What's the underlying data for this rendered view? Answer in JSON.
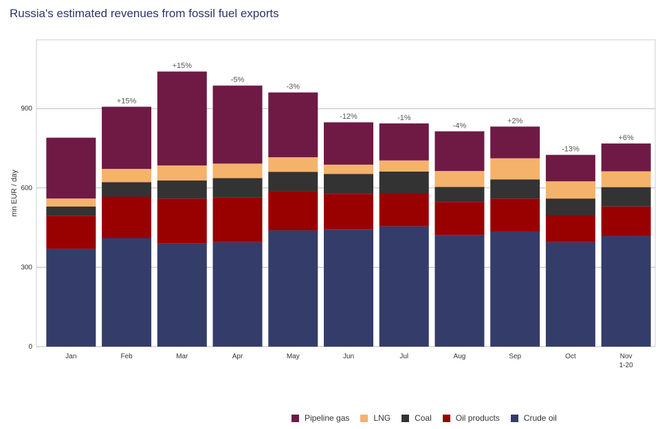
{
  "title": "Russia's estimated revenues from fossil fuel exports",
  "colors": {
    "Pipeline gas": "#6e1a45",
    "LNG": "#f5b26b",
    "Coal": "#333333",
    "Oil products": "#990000",
    "Crude oil": "#343c6a"
  },
  "chart_data": {
    "type": "bar",
    "stacked": true,
    "title": "Russia's estimated revenues from fossil fuel exports",
    "xlabel": "",
    "ylabel": "mn EUR / day",
    "ylim": [
      0,
      1160
    ],
    "yticks": [
      0,
      300,
      600,
      900
    ],
    "grid": true,
    "legend_position": "bottom",
    "categories": [
      "Jan",
      "Feb",
      "Mar",
      "Apr",
      "May",
      "Jun",
      "Jul",
      "Aug",
      "Sep",
      "Oct",
      "Nov\n1-20"
    ],
    "series": [
      {
        "name": "Crude oil",
        "values": [
          370,
          410,
          390,
          395,
          440,
          443,
          455,
          422,
          436,
          395,
          418
        ]
      },
      {
        "name": "Oil products",
        "values": [
          125,
          157,
          170,
          170,
          148,
          135,
          125,
          125,
          124,
          102,
          112
        ]
      },
      {
        "name": "Coal",
        "values": [
          35,
          55,
          68,
          72,
          73,
          75,
          82,
          57,
          72,
          63,
          73
        ]
      },
      {
        "name": "LNG",
        "values": [
          30,
          50,
          57,
          55,
          55,
          35,
          42,
          60,
          80,
          65,
          60
        ]
      },
      {
        "name": "Pipeline gas",
        "values": [
          230,
          235,
          355,
          295,
          245,
          160,
          140,
          150,
          120,
          100,
          105
        ]
      }
    ],
    "annotations": [
      "",
      "+15%",
      "+15%",
      "-5%",
      "-3%",
      "-12%",
      "-1%",
      "-4%",
      "+2%",
      "-13%",
      "+6%"
    ]
  },
  "legend_order": [
    "Pipeline gas",
    "LNG",
    "Coal",
    "Oil products",
    "Crude oil"
  ]
}
